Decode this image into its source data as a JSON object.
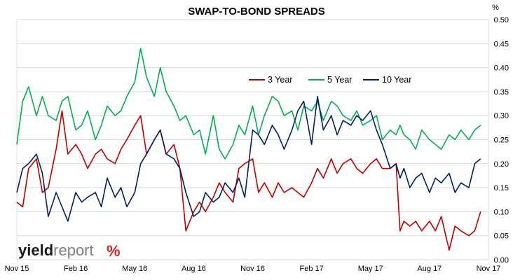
{
  "logo": {
    "word1": "yield",
    "word2": "report",
    "mark": "%"
  },
  "colors": {
    "series_3y": "#c00000",
    "series_5y": "#00b050",
    "series_10y": "#002060",
    "grid": "#d9d9d9",
    "logo_dark": "#1a1a1a",
    "logo_grey": "#7f7f7f",
    "logo_green": "#00a651",
    "logo_red": "#e0201b"
  },
  "chart_data": {
    "type": "line",
    "title": "SWAP-TO-BOND SPREADS",
    "ylabel": "%",
    "xlabel": "",
    "x_ticks": [
      "Nov 15",
      "Feb 16",
      "May 16",
      "Aug 16",
      "Nov 16",
      "Feb 17",
      "May 17",
      "Aug 17",
      "Nov 17"
    ],
    "y_ticks": [
      "0.00",
      "0.05",
      "0.10",
      "0.15",
      "0.20",
      "0.25",
      "0.30",
      "0.35",
      "0.40",
      "0.45",
      "0.50"
    ],
    "ylim": [
      0,
      0.5
    ],
    "grid": "horizontal",
    "legend_position": "top-center",
    "x_note": "x values are months since Nov 2015",
    "series": [
      {
        "name": "3 Year",
        "x": [
          0,
          0.3,
          0.6,
          1,
          1.3,
          1.6,
          2,
          2.3,
          2.6,
          3,
          3.3,
          3.6,
          4,
          4.3,
          4.6,
          5,
          5.3,
          5.6,
          6,
          6.3,
          6.6,
          7,
          7.3,
          7.6,
          8,
          8.3,
          8.6,
          9,
          9.3,
          9.6,
          10,
          10.3,
          10.6,
          11,
          11.3,
          11.6,
          12,
          12.3,
          12.6,
          13,
          13.3,
          13.6,
          14,
          14.3,
          14.6,
          15,
          15.3,
          15.6,
          16,
          16.3,
          16.6,
          17,
          17.3,
          17.6,
          18,
          18.3,
          18.6,
          19,
          19.3,
          19.5,
          19.7,
          20,
          20.3,
          20.6,
          21,
          21.3,
          21.6,
          22,
          22.3,
          22.6,
          23,
          23.3,
          23.6
        ],
        "values": [
          0.12,
          0.11,
          0.19,
          0.21,
          0.14,
          0.15,
          0.23,
          0.31,
          0.22,
          0.24,
          0.22,
          0.19,
          0.22,
          0.23,
          0.21,
          0.2,
          0.23,
          0.25,
          0.28,
          0.3,
          0.22,
          0.25,
          0.27,
          0.22,
          0.24,
          0.19,
          0.06,
          0.1,
          0.12,
          0.1,
          0.13,
          0.16,
          0.14,
          0.12,
          0.19,
          0.2,
          0.21,
          0.14,
          0.16,
          0.13,
          0.16,
          0.14,
          0.15,
          0.14,
          0.13,
          0.16,
          0.19,
          0.17,
          0.21,
          0.18,
          0.2,
          0.21,
          0.19,
          0.18,
          0.2,
          0.21,
          0.19,
          0.19,
          0.2,
          0.06,
          0.08,
          0.07,
          0.08,
          0.06,
          0.08,
          0.06,
          0.09,
          0.02,
          0.07,
          0.06,
          0.05,
          0.06,
          0.1
        ]
      },
      {
        "name": "5 Year",
        "x": [
          0,
          0.3,
          0.6,
          1,
          1.3,
          1.6,
          2,
          2.3,
          2.6,
          3,
          3.3,
          3.6,
          4,
          4.3,
          4.6,
          5,
          5.3,
          5.6,
          6,
          6.3,
          6.6,
          7,
          7.3,
          7.6,
          8,
          8.3,
          8.6,
          9,
          9.3,
          9.6,
          10,
          10.3,
          10.6,
          11,
          11.3,
          11.6,
          12,
          12.3,
          12.6,
          13,
          13.3,
          13.6,
          14,
          14.3,
          14.6,
          15,
          15.3,
          15.6,
          16,
          16.3,
          16.6,
          17,
          17.3,
          17.6,
          18,
          18.3,
          18.6,
          19,
          19.3,
          19.5,
          19.7,
          20,
          20.3,
          20.6,
          21,
          21.3,
          21.6,
          22,
          22.3,
          22.6,
          23,
          23.3,
          23.6
        ],
        "values": [
          0.24,
          0.33,
          0.36,
          0.3,
          0.34,
          0.3,
          0.29,
          0.33,
          0.34,
          0.27,
          0.28,
          0.31,
          0.25,
          0.28,
          0.32,
          0.3,
          0.31,
          0.34,
          0.37,
          0.44,
          0.38,
          0.34,
          0.4,
          0.35,
          0.32,
          0.29,
          0.3,
          0.26,
          0.27,
          0.22,
          0.3,
          0.23,
          0.21,
          0.24,
          0.28,
          0.26,
          0.32,
          0.26,
          0.3,
          0.34,
          0.33,
          0.3,
          0.31,
          0.27,
          0.32,
          0.31,
          0.33,
          0.29,
          0.33,
          0.32,
          0.3,
          0.29,
          0.31,
          0.28,
          0.29,
          0.3,
          0.25,
          0.27,
          0.26,
          0.28,
          0.26,
          0.25,
          0.23,
          0.27,
          0.25,
          0.24,
          0.23,
          0.26,
          0.25,
          0.27,
          0.25,
          0.27,
          0.28
        ]
      },
      {
        "name": "10 Year",
        "x": [
          0,
          0.3,
          0.6,
          1,
          1.3,
          1.6,
          2,
          2.3,
          2.6,
          3,
          3.3,
          3.6,
          4,
          4.3,
          4.6,
          5,
          5.3,
          5.6,
          6,
          6.3,
          6.6,
          7,
          7.3,
          7.6,
          8,
          8.3,
          8.6,
          9,
          9.3,
          9.6,
          10,
          10.3,
          10.6,
          11,
          11.3,
          11.6,
          12,
          12.3,
          12.6,
          13,
          13.3,
          13.6,
          14,
          14.3,
          14.6,
          15,
          15.3,
          15.6,
          16,
          16.3,
          16.6,
          17,
          17.3,
          17.6,
          18,
          18.3,
          18.6,
          19,
          19.3,
          19.5,
          19.7,
          20,
          20.3,
          20.6,
          21,
          21.3,
          21.6,
          22,
          22.3,
          22.6,
          23,
          23.3,
          23.6
        ],
        "values": [
          0.14,
          0.19,
          0.2,
          0.22,
          0.18,
          0.09,
          0.14,
          0.11,
          0.08,
          0.14,
          0.12,
          0.13,
          0.14,
          0.11,
          0.17,
          0.13,
          0.15,
          0.11,
          0.14,
          0.2,
          0.22,
          0.25,
          0.27,
          0.22,
          0.21,
          0.19,
          0.14,
          0.09,
          0.1,
          0.14,
          0.12,
          0.13,
          0.16,
          0.14,
          0.17,
          0.13,
          0.27,
          0.26,
          0.24,
          0.28,
          0.26,
          0.23,
          0.27,
          0.31,
          0.33,
          0.24,
          0.34,
          0.27,
          0.3,
          0.26,
          0.29,
          0.28,
          0.3,
          0.29,
          0.31,
          0.27,
          0.24,
          0.19,
          0.2,
          0.17,
          0.19,
          0.15,
          0.17,
          0.18,
          0.14,
          0.17,
          0.16,
          0.18,
          0.14,
          0.16,
          0.15,
          0.2,
          0.21
        ]
      }
    ]
  }
}
